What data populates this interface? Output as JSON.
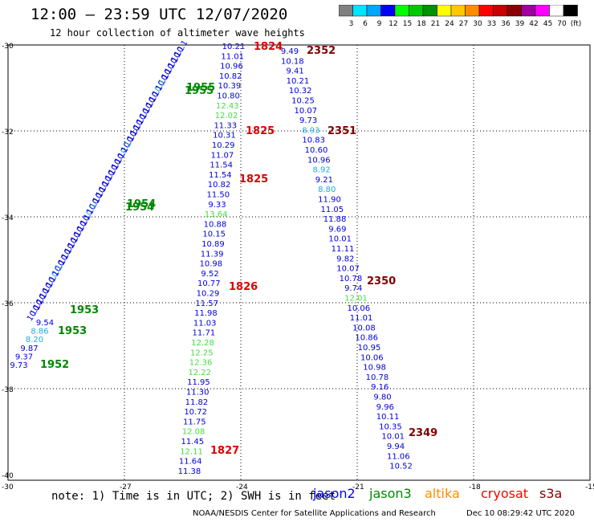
{
  "header": {
    "title": "12:00 – 23:59 UTC 12/07/2020",
    "subtitle": "12 hour collection of altimeter wave heights"
  },
  "colorbar": {
    "labels": [
      "3",
      "6",
      "9",
      "12",
      "15",
      "18",
      "21",
      "24",
      "27",
      "30",
      "33",
      "36",
      "39",
      "42",
      "45",
      "70",
      "(ft)"
    ],
    "colors": [
      "#808080",
      "#00e5ff",
      "#00a6ff",
      "#0000ff",
      "#00ff00",
      "#00c800",
      "#009000",
      "#ffff00",
      "#ffc800",
      "#ff8c00",
      "#ff0000",
      "#c80000",
      "#8b0000",
      "#a000a0",
      "#ff00ff",
      "#ffffff",
      "#000000"
    ]
  },
  "axes": {
    "lat_labels": [
      "-30",
      "-32",
      "-34",
      "-36",
      "-38",
      "-40"
    ],
    "lon_labels": [
      "-30",
      "-27",
      "-24",
      "-21",
      "-18",
      "-15"
    ]
  },
  "tracks": {
    "t1": {
      "values": [
        "10.21",
        "11.01",
        "10.96",
        "10.82",
        "10.39",
        "10.80",
        "12.43",
        "12.02",
        "11.33",
        "10.31",
        "10.29",
        "11.07",
        "11.54",
        "11.54",
        "10.82",
        "11.50",
        "9.33",
        "13.64",
        "10.88",
        "10.15",
        "10.89",
        "11.39",
        "10.98",
        "9.52",
        "10.77",
        "10.29",
        "11.57",
        "11.98",
        "11.03",
        "11.71",
        "12.28",
        "12.25",
        "12.36",
        "12.22",
        "11.95",
        "11.30",
        "11.82",
        "10.72",
        "11.75",
        "12.08",
        "11.45",
        "12.11",
        "11.64",
        "11.38"
      ],
      "colors": [
        "b",
        "b",
        "b",
        "b",
        "b",
        "b",
        "g",
        "g",
        "b",
        "b",
        "b",
        "b",
        "b",
        "b",
        "b",
        "b",
        "b",
        "g",
        "b",
        "b",
        "b",
        "b",
        "b",
        "b",
        "b",
        "b",
        "b",
        "b",
        "b",
        "b",
        "g",
        "g",
        "g",
        "g",
        "b",
        "b",
        "b",
        "b",
        "b",
        "g",
        "b",
        "g",
        "b",
        "b"
      ]
    },
    "t2": {
      "values": [
        "9.49",
        "10.18",
        "9.41",
        "10.21",
        "10.32",
        "10.25",
        "10.07",
        "9.73",
        "8.93",
        "10.83",
        "10.60",
        "10.96",
        "8.92",
        "9.21",
        "8.80",
        "11.90",
        "11.05",
        "11.88",
        "9.69",
        "10.01",
        "11.11",
        "9.82",
        "10.07",
        "10.78",
        "9.74",
        "12.01",
        "10.06",
        "11.01",
        "10.08",
        "10.86",
        "10.95",
        "10.06",
        "10.98",
        "10.78",
        "9.16",
        "9.80",
        "9.96",
        "10.11",
        "10.35",
        "10.01",
        "9.94",
        "11.06",
        "10.52"
      ],
      "colors": [
        "b",
        "b",
        "b",
        "b",
        "b",
        "b",
        "b",
        "b",
        "c",
        "b",
        "b",
        "b",
        "c",
        "b",
        "c",
        "b",
        "b",
        "b",
        "b",
        "b",
        "b",
        "b",
        "b",
        "b",
        "b",
        "g",
        "b",
        "b",
        "b",
        "b",
        "b",
        "b",
        "b",
        "b",
        "b",
        "b",
        "b",
        "b",
        "b",
        "b",
        "b",
        "b",
        "b"
      ]
    },
    "t3": {
      "values": [
        "9.54",
        "8.86",
        "8.20",
        "9.87",
        "9.37",
        "9.73"
      ],
      "colors": [
        "b",
        "c",
        "c",
        "b",
        "b",
        "b"
      ]
    }
  },
  "times": {
    "t1824": "1824",
    "t1825a": "1825",
    "t1825b": "1825",
    "t1826": "1826",
    "t1827": "1827",
    "t2352": "2352",
    "t2351": "2351",
    "t2350": "2350",
    "t2349": "2349",
    "t1955": "1955",
    "t1954": "1954",
    "t1953": "1953",
    "t1952": "1952"
  },
  "footer": {
    "note": "note: 1) Time is in UTC; 2) SWH is in feet",
    "credit": "NOAA/NESDIS Center for Satellite Applications and Research",
    "stamp": "Dec 10 08:29:42 UTC 2020"
  },
  "legend": [
    {
      "label": "jason2",
      "color": "#0000ff"
    },
    {
      "label": "jason3",
      "color": "#008800"
    },
    {
      "label": "altika",
      "color": "#ff8c00"
    },
    {
      "label": "cryosat",
      "color": "#ff0000"
    },
    {
      "label": "s3a",
      "color": "#800000"
    }
  ]
}
